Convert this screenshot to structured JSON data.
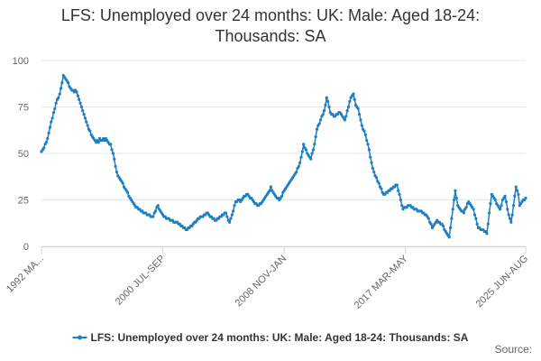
{
  "chart_data": {
    "type": "line",
    "title": "LFS: Unemployed over 24 months: UK: Male: Aged 18-24: Thousands: SA",
    "source": "Source:",
    "ylim": [
      0,
      100
    ],
    "yticks": [
      0,
      25,
      50,
      75,
      100
    ],
    "grid": true,
    "categories": [
      "1992 MA...",
      null,
      null,
      null,
      null,
      null,
      null,
      null,
      null,
      null,
      null,
      null,
      null,
      null,
      null,
      null,
      null,
      null,
      null,
      null,
      null,
      null,
      null,
      null,
      null,
      null,
      null,
      null,
      null,
      null,
      null,
      null,
      null,
      null,
      null,
      null,
      null,
      null,
      null,
      null,
      null,
      null,
      null,
      null,
      null,
      null,
      null,
      null,
      null,
      null,
      null,
      null,
      null,
      null,
      null,
      null,
      null,
      null,
      null,
      null,
      null,
      null,
      null,
      null,
      null,
      null,
      null,
      null,
      null,
      null,
      null,
      null,
      null,
      null,
      null,
      null,
      null,
      null,
      null,
      null,
      null,
      null,
      null,
      null,
      null,
      null,
      null,
      null,
      null,
      null,
      null,
      null,
      null,
      null,
      null,
      null,
      null,
      null,
      null,
      null,
      "2000 JUL-SEP",
      null,
      null,
      null,
      null,
      null,
      null,
      null,
      null,
      null,
      null,
      null,
      null,
      null,
      null,
      null,
      null,
      null,
      null,
      null,
      null,
      null,
      null,
      null,
      null,
      null,
      null,
      null,
      null,
      null,
      null,
      null,
      null,
      null,
      null,
      null,
      null,
      null,
      null,
      null,
      null,
      null,
      null,
      null,
      null,
      null,
      null,
      null,
      null,
      null,
      null,
      null,
      null,
      null,
      null,
      null,
      null,
      null,
      null,
      null,
      null,
      null,
      null,
      null,
      null,
      null,
      null,
      null,
      null,
      null,
      null,
      null,
      null,
      null,
      null,
      null,
      null,
      null,
      null,
      null,
      null,
      null,
      null,
      null,
      null,
      null,
      null,
      null,
      null,
      null,
      null,
      null,
      null,
      null,
      null,
      null,
      null,
      null,
      null,
      null,
      "2008 NOV-JAN",
      null,
      null,
      null,
      null,
      null,
      null,
      null,
      null,
      null,
      null,
      null,
      null,
      null,
      null,
      null,
      null,
      null,
      null,
      null,
      null,
      null,
      null,
      null,
      null,
      null,
      null,
      null,
      null,
      null,
      null,
      null,
      null,
      null,
      null,
      null,
      null,
      null,
      null,
      null,
      null,
      null,
      null,
      null,
      null,
      null,
      null,
      null,
      null,
      null,
      null,
      null,
      null,
      null,
      null,
      null,
      null,
      null,
      null,
      null,
      null,
      null,
      null,
      null,
      null,
      null,
      null,
      null,
      null,
      null,
      null,
      null,
      null,
      null,
      null,
      null,
      null,
      null,
      null,
      null,
      null,
      null,
      null,
      null,
      null,
      null,
      null,
      null,
      null,
      null,
      null,
      null,
      null,
      null,
      null,
      null,
      null,
      null,
      null,
      null,
      "2017 MAR-MAY",
      null,
      null,
      null,
      null,
      null,
      null,
      null,
      null,
      null,
      null,
      null,
      null,
      null,
      null,
      null,
      null,
      null,
      null,
      null,
      null,
      null,
      null,
      null,
      null,
      null,
      null,
      null,
      null,
      null,
      null,
      null,
      null,
      null,
      null,
      null,
      null,
      null,
      null,
      null,
      null,
      null,
      null,
      null,
      null,
      null,
      null,
      null,
      null,
      null,
      null,
      null,
      null,
      null,
      null,
      null,
      null,
      null,
      null,
      null,
      null,
      null,
      null,
      null,
      null,
      null,
      null,
      null,
      null,
      null,
      null,
      null,
      null,
      null,
      null,
      null,
      null,
      null,
      null,
      null,
      null,
      null,
      null,
      null,
      null,
      null,
      null,
      null,
      null,
      null,
      null,
      null,
      null,
      null,
      null,
      null,
      null,
      null,
      null,
      "2025 JUN-AUG"
    ],
    "series": [
      {
        "name": "LFS: Unemployed over 24 months: UK: Male: Aged 18-24: Thousands: SA",
        "color": "#1f7fc0",
        "values": [
          51,
          52,
          53,
          55,
          56,
          58,
          61,
          64,
          67,
          69,
          72,
          74,
          77,
          79,
          80,
          82,
          85,
          88,
          92,
          91,
          90,
          89,
          88,
          86,
          85,
          84,
          84,
          83,
          84,
          83,
          81,
          79,
          77,
          75,
          73,
          71,
          69,
          67,
          65,
          63,
          62,
          60,
          59,
          58,
          57,
          56,
          57,
          56,
          58,
          57,
          57,
          58,
          57,
          58,
          57,
          56,
          55,
          55,
          52,
          50,
          47,
          43,
          40,
          38,
          37,
          36,
          35,
          34,
          32,
          31,
          30,
          29,
          27,
          26,
          25,
          24,
          23,
          22,
          21,
          21,
          20,
          20,
          19,
          19,
          18,
          18,
          18,
          17,
          17,
          17,
          16,
          16,
          16,
          18,
          19,
          21,
          22,
          20,
          19,
          18,
          17,
          16,
          16,
          15,
          15,
          15,
          14,
          14,
          14,
          13,
          13,
          13,
          13,
          12,
          12,
          11,
          11,
          10,
          10,
          9,
          9,
          10,
          10,
          11,
          11,
          12,
          13,
          13,
          14,
          15,
          15,
          16,
          16,
          16,
          17,
          17,
          18,
          18,
          17,
          16,
          16,
          15,
          15,
          14,
          14,
          15,
          15,
          16,
          16,
          17,
          17,
          18,
          18,
          16,
          14,
          13,
          15,
          17,
          19,
          22,
          24,
          24,
          25,
          25,
          24,
          25,
          26,
          27,
          27,
          28,
          28,
          27,
          26,
          26,
          25,
          24,
          23,
          23,
          22,
          22,
          23,
          23,
          24,
          25,
          26,
          27,
          28,
          29,
          30,
          32,
          30,
          29,
          28,
          27,
          26,
          26,
          25,
          26,
          27,
          29,
          30,
          31,
          32,
          33,
          34,
          35,
          36,
          37,
          38,
          39,
          40,
          42,
          43,
          45,
          48,
          51,
          55,
          53,
          52,
          50,
          49,
          48,
          47,
          50,
          52,
          55,
          59,
          63,
          65,
          66,
          68,
          70,
          71,
          73,
          76,
          80,
          78,
          75,
          72,
          71,
          71,
          70,
          70,
          71,
          71,
          72,
          72,
          71,
          70,
          69,
          68,
          70,
          73,
          75,
          78,
          80,
          81,
          82,
          79,
          76,
          75,
          74,
          71,
          68,
          65,
          63,
          62,
          60,
          57,
          55,
          52,
          48,
          45,
          42,
          40,
          38,
          37,
          35,
          34,
          32,
          31,
          29,
          28,
          28,
          29,
          29,
          30,
          30,
          31,
          31,
          32,
          32,
          33,
          33,
          30,
          28,
          25,
          22,
          20,
          21,
          21,
          21,
          22,
          22,
          22,
          21,
          21,
          20,
          20,
          20,
          19,
          19,
          19,
          19,
          18,
          18,
          17,
          17,
          16,
          15,
          13,
          12,
          10,
          11,
          12,
          13,
          14,
          13,
          13,
          12,
          12,
          11,
          9,
          8,
          7,
          6,
          5,
          10,
          15,
          20,
          25,
          30,
          26,
          22,
          21,
          20,
          19,
          19,
          18,
          20,
          21,
          23,
          24,
          23,
          22,
          21,
          20,
          17,
          15,
          12,
          10,
          10,
          9,
          9,
          9,
          8,
          8,
          7,
          12,
          18,
          23,
          28,
          27,
          26,
          25,
          23,
          22,
          21,
          20,
          22,
          25,
          26,
          27,
          24,
          20,
          17,
          15,
          13,
          17,
          22,
          27,
          32,
          30,
          28,
          22,
          23,
          24,
          25,
          25,
          26
        ]
      }
    ]
  }
}
